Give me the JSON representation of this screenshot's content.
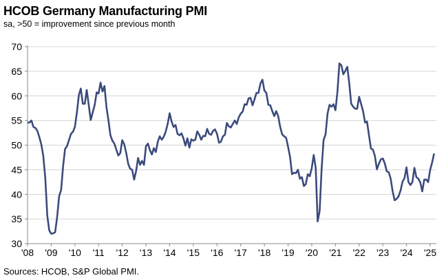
{
  "chart_data": {
    "type": "line",
    "title": "HCOB Germany Manufacturing PMI",
    "subtitle": "sa, >50 = improvement since previous month",
    "source": "Sources: HCOB, S&P Global PMI.",
    "xlabel": "",
    "ylabel": "",
    "ylim": [
      30,
      70
    ],
    "yticks": [
      30,
      35,
      40,
      45,
      50,
      55,
      60,
      65,
      70
    ],
    "xticks": [
      "'08",
      "'09",
      "'10",
      "'11",
      "'12",
      "'13",
      "'14",
      "'15",
      "'16",
      "'17",
      "'18",
      "'19",
      "'20",
      "'21",
      "'22",
      "'23",
      "'24",
      "'25"
    ],
    "grid": "horizontal",
    "line_color": "#3b4a7c",
    "x_start": "2008-01",
    "x_end": "2025-03",
    "frequency": "monthly",
    "values": [
      54.6,
      54.6,
      55.0,
      53.7,
      53.5,
      52.9,
      51.6,
      50.1,
      47.8,
      43.3,
      35.7,
      32.7,
      32.0,
      32.1,
      32.3,
      35.4,
      39.6,
      40.9,
      45.6,
      49.2,
      49.8,
      51.0,
      52.3,
      52.7,
      53.7,
      56.6,
      60.2,
      61.5,
      58.4,
      58.4,
      61.2,
      58.2,
      55.1,
      56.6,
      58.1,
      60.7,
      60.5,
      62.7,
      60.9,
      62.0,
      57.7,
      55.0,
      52.0,
      50.9,
      50.3,
      49.1,
      47.9,
      48.4,
      51.0,
      50.2,
      48.4,
      46.2,
      45.2,
      45.0,
      43.0,
      44.7,
      47.4,
      46.0,
      46.8,
      46.0,
      49.8,
      50.3,
      49.0,
      48.1,
      49.4,
      48.6,
      50.7,
      51.8,
      51.1,
      51.7,
      52.7,
      54.3,
      56.5,
      54.8,
      53.7,
      54.1,
      52.3,
      52.0,
      52.4,
      51.4,
      49.9,
      51.4,
      49.5,
      51.2,
      50.9,
      51.1,
      52.8,
      52.1,
      51.1,
      51.9,
      51.8,
      53.3,
      52.3,
      52.1,
      52.9,
      53.2,
      52.3,
      50.5,
      50.7,
      51.8,
      52.1,
      54.5,
      53.8,
      53.6,
      54.3,
      55.0,
      54.3,
      55.6,
      56.4,
      56.8,
      58.3,
      58.2,
      59.5,
      59.6,
      58.1,
      59.3,
      60.6,
      60.6,
      62.5,
      63.3,
      61.1,
      60.6,
      58.2,
      58.1,
      56.9,
      55.9,
      56.9,
      55.9,
      53.7,
      52.2,
      51.8,
      51.5,
      49.7,
      47.6,
      44.1,
      44.4,
      44.3,
      45.0,
      43.2,
      43.5,
      41.7,
      42.1,
      44.1,
      43.7,
      45.3,
      48.0,
      45.4,
      34.5,
      36.6,
      45.2,
      51.0,
      52.2,
      56.4,
      58.2,
      57.8,
      58.3,
      57.1,
      60.7,
      66.6,
      66.2,
      64.4,
      65.1,
      65.9,
      62.6,
      58.4,
      57.8,
      57.4,
      57.4,
      59.8,
      58.4,
      56.9,
      54.6,
      54.8,
      52.0,
      49.3,
      49.1,
      47.8,
      45.1,
      46.2,
      47.1,
      47.3,
      46.3,
      44.7,
      44.5,
      43.2,
      40.6,
      38.8,
      39.1,
      39.6,
      40.8,
      42.6,
      43.3,
      45.5,
      42.5,
      41.9,
      42.5,
      45.4,
      43.5,
      43.2,
      42.4,
      40.6,
      43.0,
      43.0,
      42.5,
      45.0,
      46.5,
      48.3
    ]
  }
}
